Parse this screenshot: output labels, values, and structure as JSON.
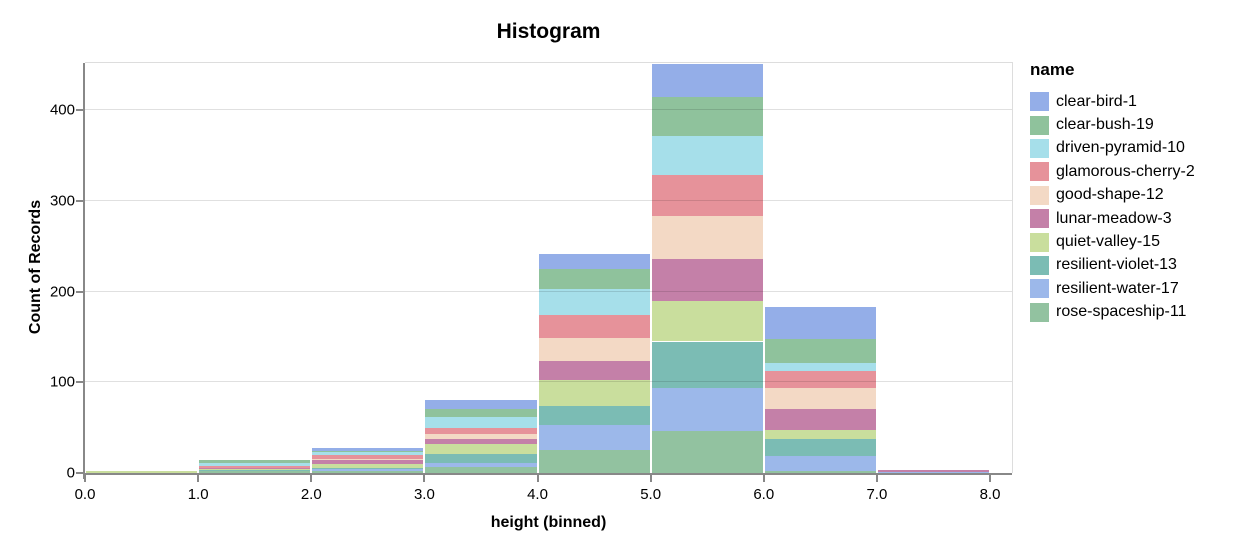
{
  "chart_data": {
    "type": "bar",
    "stacked": true,
    "title": "Histogram",
    "xlabel": "height (binned)",
    "ylabel": "Count of Records",
    "legend_title": "name",
    "legend_position": "right",
    "grid": true,
    "bin_edges": [
      0,
      1,
      2,
      3,
      4,
      5,
      6,
      7,
      8
    ],
    "x_tick_labels": [
      "0.0",
      "1.0",
      "2.0",
      "3.0",
      "4.0",
      "5.0",
      "6.0",
      "7.0",
      "8.0"
    ],
    "y_ticks": [
      0,
      100,
      200,
      300,
      400
    ],
    "ylim": [
      0,
      452
    ],
    "bin_totals": [
      2,
      14,
      28,
      80,
      241,
      451,
      183,
      3
    ],
    "series": [
      {
        "name": "clear-bird-1",
        "color": "#94aee8",
        "values": [
          0,
          0,
          4,
          9,
          16,
          37,
          35,
          0
        ]
      },
      {
        "name": "clear-bush-19",
        "color": "#8fc29c",
        "values": [
          0,
          3,
          1,
          9,
          22,
          43,
          27,
          0
        ]
      },
      {
        "name": "driven-pyramid-10",
        "color": "#a6dfea",
        "values": [
          0,
          3,
          3,
          12,
          29,
          43,
          9,
          0
        ]
      },
      {
        "name": "glamorous-cherry-2",
        "color": "#e6929a",
        "values": [
          0,
          3,
          4,
          7,
          25,
          45,
          18,
          0
        ]
      },
      {
        "name": "good-shape-12",
        "color": "#f3d9c5",
        "values": [
          0,
          0,
          2,
          5,
          25,
          47,
          23,
          0
        ]
      },
      {
        "name": "lunar-meadow-3",
        "color": "#c480a8",
        "values": [
          0,
          1,
          4,
          6,
          21,
          46,
          24,
          2
        ]
      },
      {
        "name": "quiet-valley-15",
        "color": "#c9de9d",
        "values": [
          2,
          1,
          4,
          11,
          29,
          45,
          10,
          0
        ]
      },
      {
        "name": "resilient-violet-13",
        "color": "#7bbcb4",
        "values": [
          0,
          1,
          2,
          10,
          21,
          51,
          18,
          0
        ]
      },
      {
        "name": "resilient-water-17",
        "color": "#9cb8ea",
        "values": [
          0,
          0,
          2,
          4,
          28,
          48,
          17,
          1
        ]
      },
      {
        "name": "rose-spaceship-11",
        "color": "#92c2a0",
        "values": [
          0,
          2,
          2,
          7,
          25,
          46,
          2,
          0
        ]
      }
    ],
    "axis_color": "#888888",
    "gridline_color": "#dddddd"
  }
}
